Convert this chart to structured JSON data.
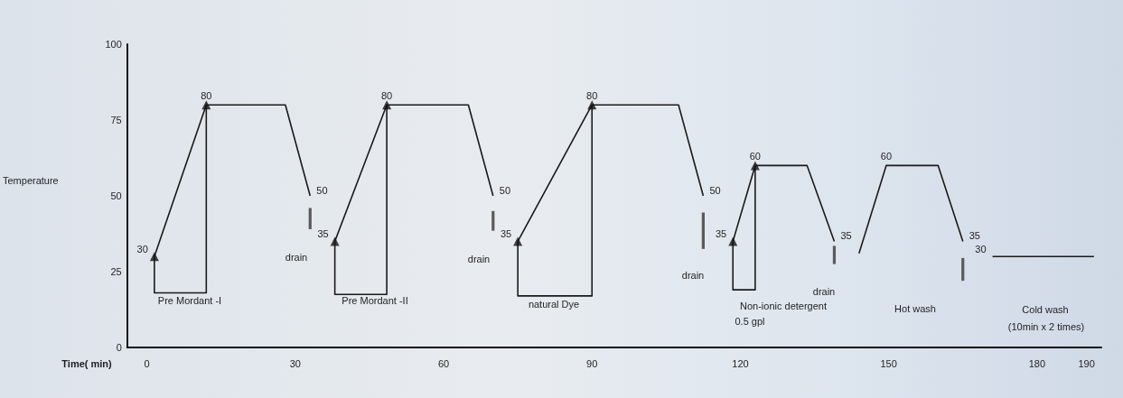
{
  "chart_data": {
    "type": "line",
    "xlabel": "Time( min)",
    "ylabel": "Temperature",
    "xlim": [
      -4,
      193
    ],
    "xticks": [
      0,
      30,
      60,
      90,
      120,
      150,
      180,
      190
    ],
    "ylim": [
      0,
      100
    ],
    "yticks": [
      0,
      25,
      50,
      75,
      100
    ],
    "series": [
      {
        "color": "#1a1a1a",
        "x": [
          1.5,
          12,
          28,
          33
        ],
        "values": [
          30,
          80,
          80,
          50
        ],
        "value_labels": [
          "30",
          "80",
          null,
          "50"
        ]
      },
      {
        "color": "#1a1a1a",
        "x": [
          38,
          48.5,
          65,
          70
        ],
        "values": [
          35,
          80,
          80,
          50
        ],
        "value_labels": [
          "35",
          "80",
          null,
          "50"
        ]
      },
      {
        "color": "#1a1a1a",
        "x": [
          75,
          90,
          107.5,
          112.5
        ],
        "values": [
          35,
          80,
          80,
          50
        ],
        "value_labels": [
          "35",
          "80",
          null,
          "50"
        ]
      },
      {
        "color": "#1a1a1a",
        "x": [
          118.5,
          123,
          133.5,
          139
        ],
        "values": [
          35,
          60,
          60,
          35
        ],
        "value_labels": [
          "35",
          "60",
          null,
          "35"
        ]
      },
      {
        "color": "#1a1a1a",
        "x": [
          144,
          149.5,
          160,
          165
        ],
        "values": [
          31,
          60,
          60,
          35
        ],
        "value_labels": [
          null,
          "60",
          null,
          "35"
        ]
      },
      {
        "color": "#1a1a1a",
        "x": [
          171,
          191.5
        ],
        "values": [
          30,
          30
        ],
        "value_labels": [
          "30",
          null
        ]
      },
      {
        "color": "#1a1a1a",
        "x": [
          1.5,
          1.5,
          12,
          12
        ],
        "values": [
          30,
          18,
          18,
          80
        ]
      },
      {
        "color": "#1a1a1a",
        "x": [
          38,
          38,
          48.5,
          48.5
        ],
        "values": [
          35,
          17.5,
          17.5,
          80
        ]
      },
      {
        "color": "#1a1a1a",
        "x": [
          75,
          75,
          90,
          90
        ],
        "values": [
          35,
          17,
          17,
          80
        ]
      },
      {
        "color": "#1a1a1a",
        "x": [
          118.5,
          118.5,
          123,
          123
        ],
        "values": [
          35,
          19,
          19,
          60
        ]
      },
      {
        "type": "bar",
        "color": "#5a5a5a",
        "x": [
          33,
          70,
          112.5,
          139,
          165
        ],
        "base": [
          39,
          38.5,
          32.5,
          27.5,
          22
        ],
        "values": [
          7,
          6.5,
          12,
          6,
          7.5
        ]
      },
      {
        "type": "scatter",
        "marker": "triangle",
        "color": "#111111",
        "x": [
          1.5,
          12,
          38,
          48.5,
          75,
          90,
          118.5,
          123
        ],
        "values": [
          30,
          80,
          35,
          80,
          35,
          80,
          35,
          60
        ]
      }
    ],
    "annotations": [
      "drain",
      "Pre Mordant -I",
      "drain",
      "Pre Mordant -II",
      "natural Dye",
      "drain",
      "Non-ionic detergent",
      "0.5 gpl",
      "drain",
      "Hot wash",
      "Cold wash",
      "(10min x 2 times)"
    ]
  }
}
